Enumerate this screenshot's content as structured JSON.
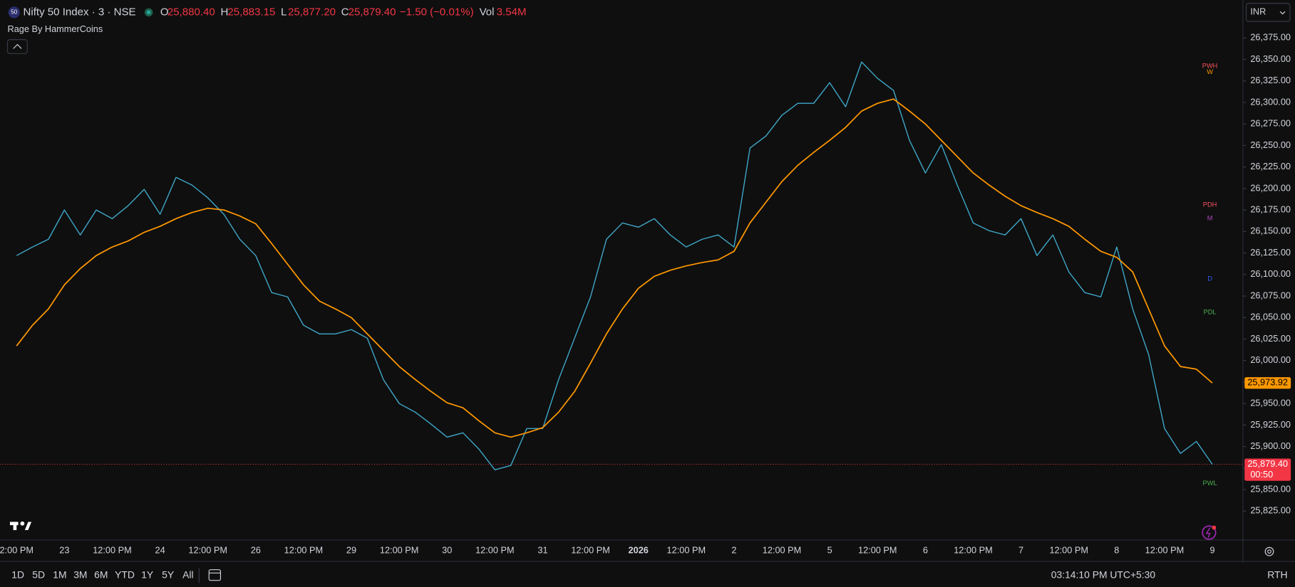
{
  "header": {
    "logo": "50",
    "symbol": "Nifty 50 Index · 3 · NSE",
    "ohlc": [
      {
        "key": "O",
        "value": "25,880.40"
      },
      {
        "key": "H",
        "value": "25,883.15"
      },
      {
        "key": "L",
        "value": "25,877.20"
      },
      {
        "key": "C",
        "value": "25,879.40"
      }
    ],
    "change": "−1.50 (−0.01%)",
    "vol_key": "Vol",
    "vol_value": "3.54M",
    "indicator": "Rage By HammerCoins",
    "currency": "INR"
  },
  "chart_data": {
    "type": "line",
    "categories": [
      "2:00 PM",
      null,
      null,
      "23",
      null,
      null,
      "12:00 PM",
      null,
      null,
      "24",
      null,
      null,
      "12:00 PM",
      null,
      null,
      "26",
      null,
      null,
      "12:00 PM",
      null,
      null,
      "29",
      null,
      null,
      "12:00 PM",
      null,
      null,
      "30",
      null,
      null,
      "12:00 PM",
      null,
      null,
      "31",
      null,
      null,
      "12:00 PM",
      null,
      null,
      "2026",
      null,
      null,
      "12:00 PM",
      null,
      null,
      "2",
      null,
      null,
      "12:00 PM",
      null,
      null,
      "5",
      null,
      null,
      "12:00 PM",
      null,
      null,
      "6",
      null,
      null,
      "12:00 PM",
      null,
      null,
      "7",
      null,
      null,
      "12:00 PM",
      null,
      null,
      "8",
      null,
      null,
      "12:00 PM",
      null,
      null,
      "9"
    ],
    "series": [
      {
        "name": "Nifty 50 Index",
        "color": "#3fa7c9",
        "values": [
          26122,
          26132,
          26141,
          26175,
          26146,
          26175,
          26165,
          26180,
          26199,
          26170,
          26213,
          26204,
          26189,
          26170,
          26141,
          26122,
          26079,
          26074,
          26041,
          26031,
          26031,
          26036,
          26026,
          25978,
          25950,
          25940,
          25926,
          25911,
          25916,
          25897,
          25873,
          25878,
          25921,
          25921,
          25978,
          26026,
          26074,
          26141,
          26160,
          26155,
          26165,
          26146,
          26132,
          26141,
          26146,
          26132,
          26247,
          26261,
          26285,
          26299,
          26299,
          26323,
          26295,
          26347,
          26328,
          26314,
          26256,
          26218,
          26251,
          26204,
          26160,
          26151,
          26146,
          26165,
          26122,
          26146,
          26103,
          26079,
          26074,
          26132,
          26060,
          26007,
          25921,
          25892,
          25906,
          25879.4
        ]
      },
      {
        "name": "Rage By HammerCoins",
        "color": "#ff9800",
        "values": [
          26017,
          26041,
          26060,
          26088,
          26107,
          26122,
          26132,
          26139,
          26149,
          26156,
          26165,
          26172,
          26177,
          26175,
          26168,
          26159,
          26136,
          26112,
          26088,
          26069,
          26060,
          26050,
          26031,
          26012,
          25993,
          25978,
          25964,
          25951,
          25945,
          25930,
          25916,
          25911,
          25916,
          25922,
          25940,
          25964,
          25997,
          26031,
          26060,
          26084,
          26098,
          26105,
          26110,
          26114,
          26117,
          26127,
          26160,
          26184,
          26208,
          26227,
          26242,
          26256,
          26271,
          26290,
          26299,
          26304,
          26290,
          26275,
          26256,
          26237,
          26218,
          26204,
          26191,
          26180,
          26172,
          26165,
          26156,
          26141,
          26127,
          26120,
          26103,
          26060,
          26017,
          25993,
          25990,
          25973.92
        ]
      }
    ],
    "ylim": [
      25791.4,
      26419.1
    ],
    "yticks": [
      {
        "value": 26375,
        "label": "26,375.00"
      },
      {
        "value": 26350,
        "label": "26,350.00"
      },
      {
        "value": 26325,
        "label": "26,325.00"
      },
      {
        "value": 26300,
        "label": "26,300.00"
      },
      {
        "value": 26275,
        "label": "26,275.00"
      },
      {
        "value": 26250,
        "label": "26,250.00"
      },
      {
        "value": 26225,
        "label": "26,225.00"
      },
      {
        "value": 26200,
        "label": "26,200.00"
      },
      {
        "value": 26175,
        "label": "26,175.00"
      },
      {
        "value": 26150,
        "label": "26,150.00"
      },
      {
        "value": 26125,
        "label": "26,125.00"
      },
      {
        "value": 26100,
        "label": "26,100.00"
      },
      {
        "value": 26075,
        "label": "26,075.00"
      },
      {
        "value": 26050,
        "label": "26,050.00"
      },
      {
        "value": 26025,
        "label": "26,025.00"
      },
      {
        "value": 26000,
        "label": "26,000.00"
      },
      {
        "value": 25975,
        "label": "25,975.00"
      },
      {
        "value": 25950,
        "label": "25,950.00"
      },
      {
        "value": 25925,
        "label": "25,925.00"
      },
      {
        "value": 25900,
        "label": "25,900.00"
      },
      {
        "value": 25875,
        "label": "25,875.00"
      },
      {
        "value": 25850,
        "label": "25,850.00"
      },
      {
        "value": 25825,
        "label": "25,825.00"
      }
    ],
    "grid": false,
    "levels": [
      {
        "label": "PWH",
        "value": 26342,
        "color": "#f7525f"
      },
      {
        "label": "W",
        "value": 26335,
        "color": "#ff9800"
      },
      {
        "label": "PDH",
        "value": 26181,
        "color": "#f7525f"
      },
      {
        "label": "M",
        "value": 26165,
        "color": "#ab47bc"
      },
      {
        "label": "D",
        "value": 26095,
        "color": "#2962ff"
      },
      {
        "label": "PDL",
        "value": 26056,
        "color": "#4caf50"
      },
      {
        "label": "PWL",
        "value": 25857,
        "color": "#4caf50"
      }
    ],
    "price_tags": {
      "ma": "25,973.92",
      "last": "25,879.40",
      "countdown": "00:50"
    }
  },
  "footer": {
    "ranges": [
      "1D",
      "5D",
      "1M",
      "3M",
      "6M",
      "YTD",
      "1Y",
      "5Y",
      "All"
    ],
    "clock": "03:14:10 PM UTC+5:30",
    "session": "RTH"
  }
}
